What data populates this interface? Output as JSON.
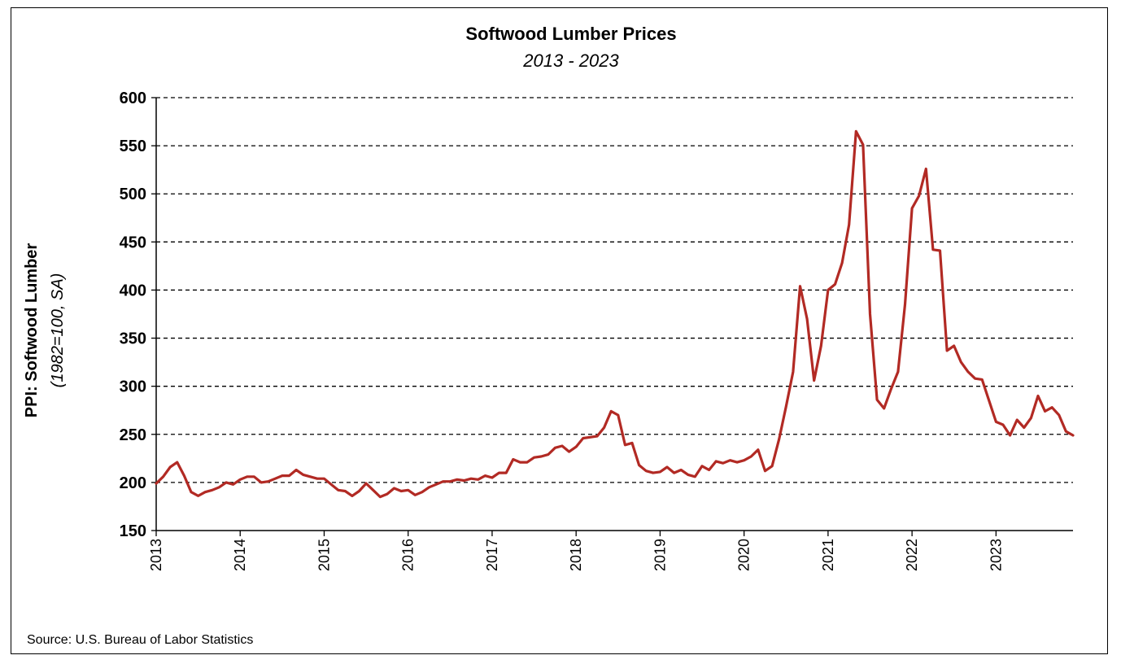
{
  "chart_data": {
    "type": "line",
    "title": "Softwood Lumber Prices",
    "subtitle": "2013 - 2023",
    "ylabel": "PPI: Softwood Lumber",
    "ylabel_sub": "(1982=100, SA)",
    "xlabel": "",
    "source": "Source: U.S. Bureau of Labor Statistics",
    "ylim": [
      150,
      600
    ],
    "yticks": [
      "150",
      "200",
      "250",
      "300",
      "350",
      "400",
      "450",
      "500",
      "550",
      "600"
    ],
    "xlim": [
      "2013-01",
      "2023-12"
    ],
    "xticks": [
      "2013",
      "2014",
      "2015",
      "2016",
      "2017",
      "2018",
      "2019",
      "2020",
      "2021",
      "2022",
      "2023"
    ],
    "grid": "horizontal-dashed",
    "line_color": "#B22A24",
    "series": [
      {
        "x": [
          "2013-01",
          "2013-02",
          "2013-03",
          "2013-04",
          "2013-05",
          "2013-06",
          "2013-07",
          "2013-08",
          "2013-09",
          "2013-10",
          "2013-11",
          "2013-12",
          "2014-01",
          "2014-02",
          "2014-03",
          "2014-04",
          "2014-05",
          "2014-06",
          "2014-07",
          "2014-08",
          "2014-09",
          "2014-10",
          "2014-11",
          "2014-12",
          "2015-01",
          "2015-02",
          "2015-03",
          "2015-04",
          "2015-05",
          "2015-06",
          "2015-07",
          "2015-08",
          "2015-09",
          "2015-10",
          "2015-11",
          "2015-12",
          "2016-01",
          "2016-02",
          "2016-03",
          "2016-04",
          "2016-05",
          "2016-06",
          "2016-07",
          "2016-08",
          "2016-09",
          "2016-10",
          "2016-11",
          "2016-12",
          "2017-01",
          "2017-02",
          "2017-03",
          "2017-04",
          "2017-05",
          "2017-06",
          "2017-07",
          "2017-08",
          "2017-09",
          "2017-10",
          "2017-11",
          "2017-12",
          "2018-01",
          "2018-02",
          "2018-03",
          "2018-04",
          "2018-05",
          "2018-06",
          "2018-07",
          "2018-08",
          "2018-09",
          "2018-10",
          "2018-11",
          "2018-12",
          "2019-01",
          "2019-02",
          "2019-03",
          "2019-04",
          "2019-05",
          "2019-06",
          "2019-07",
          "2019-08",
          "2019-09",
          "2019-10",
          "2019-11",
          "2019-12",
          "2020-01",
          "2020-02",
          "2020-03",
          "2020-04",
          "2020-05",
          "2020-06",
          "2020-07",
          "2020-08",
          "2020-09",
          "2020-10",
          "2020-11",
          "2020-12",
          "2021-01",
          "2021-02",
          "2021-03",
          "2021-04",
          "2021-05",
          "2021-06",
          "2021-07",
          "2021-08",
          "2021-09",
          "2021-10",
          "2021-11",
          "2021-12",
          "2022-01",
          "2022-02",
          "2022-03",
          "2022-04",
          "2022-05",
          "2022-06",
          "2022-07",
          "2022-08",
          "2022-09",
          "2022-10",
          "2022-11",
          "2022-12",
          "2023-01",
          "2023-02",
          "2023-03",
          "2023-04",
          "2023-05",
          "2023-06",
          "2023-07",
          "2023-08",
          "2023-09",
          "2023-10",
          "2023-11",
          "2023-12"
        ],
        "values": [
          199,
          206,
          216,
          221,
          207,
          190,
          186,
          190,
          192,
          195,
          200,
          198,
          203,
          206,
          206,
          200,
          201,
          204,
          207,
          207,
          213,
          208,
          206,
          204,
          204,
          198,
          192,
          191,
          186,
          191,
          199,
          192,
          185,
          188,
          194,
          191,
          192,
          187,
          190,
          195,
          198,
          201,
          201,
          203,
          202,
          204,
          203,
          207,
          205,
          210,
          210,
          224,
          221,
          221,
          226,
          227,
          229,
          236,
          238,
          232,
          237,
          246,
          247,
          248,
          257,
          274,
          270,
          239,
          241,
          218,
          212,
          210,
          211,
          216,
          210,
          213,
          208,
          206,
          217,
          213,
          222,
          220,
          223,
          221,
          223,
          227,
          234,
          212,
          217,
          245,
          279,
          315,
          404,
          370,
          306,
          342,
          400,
          406,
          428,
          468,
          565,
          551,
          375,
          286,
          277,
          297,
          315,
          385,
          485,
          498,
          526,
          442,
          441,
          337,
          342,
          325,
          315,
          308,
          307,
          285,
          263,
          260,
          249,
          265,
          257,
          267,
          290,
          274,
          278,
          270,
          253,
          249
        ]
      }
    ]
  }
}
